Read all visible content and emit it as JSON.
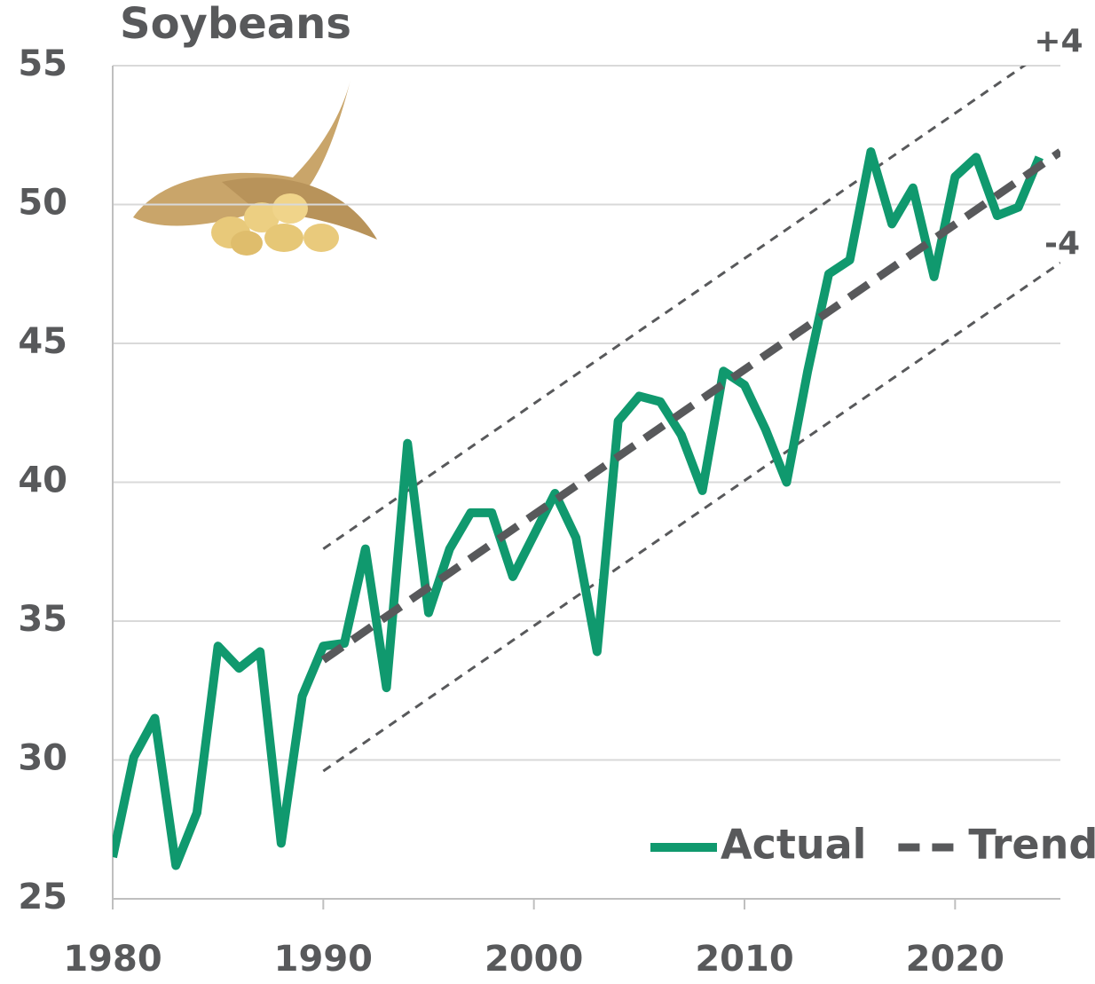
{
  "chart_data": {
    "type": "line",
    "title": "Soybeans",
    "xlim": [
      1980,
      2025
    ],
    "xticks": [
      1980,
      1990,
      2000,
      2010,
      2020
    ],
    "ylim": [
      25,
      55
    ],
    "yticks": [
      25,
      30,
      35,
      40,
      45,
      50,
      55
    ],
    "grid": true,
    "legend": "lower right",
    "series": [
      {
        "name": "Actual",
        "color": "#10996e",
        "x": [
          1980,
          1981,
          1982,
          1983,
          1984,
          1985,
          1986,
          1987,
          1988,
          1989,
          1990,
          1991,
          1992,
          1993,
          1994,
          1995,
          1996,
          1997,
          1998,
          1999,
          2000,
          2001,
          2002,
          2003,
          2004,
          2005,
          2006,
          2007,
          2008,
          2009,
          2010,
          2011,
          2012,
          2013,
          2014,
          2015,
          2016,
          2017,
          2018,
          2019,
          2020,
          2021,
          2022,
          2023,
          2024
        ],
        "values": [
          26.5,
          30.1,
          31.5,
          26.2,
          28.1,
          34.1,
          33.3,
          33.9,
          27.0,
          32.3,
          34.1,
          34.2,
          37.6,
          32.6,
          41.4,
          35.3,
          37.6,
          38.9,
          38.9,
          36.6,
          38.1,
          39.6,
          38.0,
          33.9,
          42.2,
          43.1,
          42.9,
          41.7,
          39.7,
          44.0,
          43.5,
          41.9,
          40.0,
          44.0,
          47.5,
          48.0,
          51.9,
          49.3,
          50.6,
          47.4,
          51.0,
          51.7,
          49.6,
          49.9,
          51.7
        ]
      },
      {
        "name": "Trend",
        "color": "#58595b",
        "dashed": true,
        "x": [
          1990,
          2025
        ],
        "values": [
          33.6,
          51.9
        ]
      }
    ],
    "bands": [
      {
        "label": "+4",
        "color": "#58595b",
        "x": [
          1990,
          2025
        ],
        "values": [
          37.6,
          55.9
        ]
      },
      {
        "label": "-4",
        "color": "#58595b",
        "x": [
          1990,
          2025
        ],
        "values": [
          29.6,
          47.9
        ]
      }
    ]
  }
}
